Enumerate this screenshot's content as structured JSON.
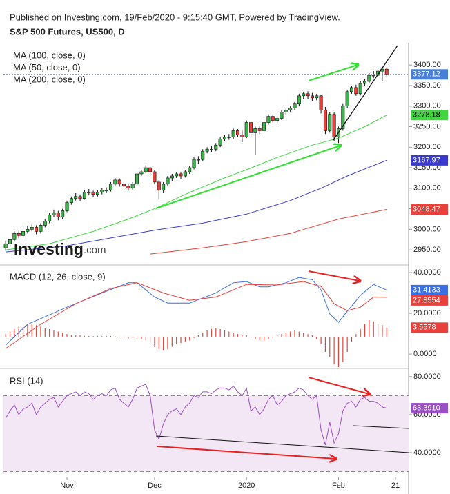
{
  "header": {
    "text": "Published on Investing.com, 19/Feb/2020 - 9:15:40 GMT, Powered by TradingView.",
    "title": "S&P 500 Futures, US500, D"
  },
  "logo": {
    "brand": "Investing",
    "suffix": ".com"
  },
  "chart_data": [
    {
      "type": "candlestick",
      "up_color": "#3cb44b",
      "down_color": "#e8413b",
      "wick_color": "#111111",
      "last_color": "#4a7fd8",
      "xlim": [
        -0.5,
        92
      ],
      "ylim": [
        2915,
        3454
      ],
      "yticks": [
        {
          "value": 3400,
          "label": "3400.00"
        },
        {
          "value": 3350,
          "label": "3350.00"
        },
        {
          "value": 3300,
          "label": "3300.00"
        },
        {
          "value": 3250,
          "label": "3250.00"
        },
        {
          "value": 3200,
          "label": "3200.00"
        },
        {
          "value": 3150,
          "label": "3150.00"
        },
        {
          "value": 3100,
          "label": "3100.00"
        },
        {
          "value": 3050,
          "label": "3050.00"
        },
        {
          "value": 3000,
          "label": "3000.00"
        },
        {
          "value": 2950,
          "label": "2950.00"
        }
      ],
      "candles": [
        [
          2955,
          2972,
          2948,
          2965
        ],
        [
          2965,
          2980,
          2960,
          2975
        ],
        [
          2975,
          2995,
          2970,
          2990
        ],
        [
          2990,
          2995,
          2978,
          2985
        ],
        [
          2985,
          3000,
          2980,
          2995
        ],
        [
          2995,
          3008,
          2990,
          3000
        ],
        [
          3000,
          3012,
          2995,
          3005
        ],
        [
          3005,
          3010,
          2988,
          2995
        ],
        [
          2995,
          3015,
          2990,
          3010
        ],
        [
          3010,
          3025,
          3005,
          3020
        ],
        [
          3020,
          3040,
          3015,
          3035
        ],
        [
          3035,
          3048,
          3030,
          3040
        ],
        [
          3040,
          3045,
          3022,
          3030
        ],
        [
          3030,
          3050,
          3025,
          3045
        ],
        [
          3045,
          3070,
          3042,
          3065
        ],
        [
          3065,
          3080,
          3060,
          3075
        ],
        [
          3075,
          3088,
          3070,
          3080
        ],
        [
          3080,
          3085,
          3068,
          3075
        ],
        [
          3075,
          3095,
          3072,
          3090
        ],
        [
          3090,
          3098,
          3083,
          3090
        ],
        [
          3090,
          3094,
          3078,
          3085
        ],
        [
          3085,
          3096,
          3080,
          3090
        ],
        [
          3090,
          3100,
          3085,
          3095
        ],
        [
          3095,
          3102,
          3088,
          3095
        ],
        [
          3095,
          3115,
          3092,
          3110
        ],
        [
          3110,
          3125,
          3105,
          3120
        ],
        [
          3120,
          3124,
          3104,
          3110
        ],
        [
          3110,
          3115,
          3098,
          3105
        ],
        [
          3105,
          3110,
          3094,
          3100
        ],
        [
          3100,
          3115,
          3096,
          3110
        ],
        [
          3110,
          3140,
          3108,
          3135
        ],
        [
          3135,
          3145,
          3130,
          3140
        ],
        [
          3140,
          3156,
          3136,
          3150
        ],
        [
          3150,
          3155,
          3135,
          3140
        ],
        [
          3140,
          3145,
          3110,
          3115
        ],
        [
          3115,
          3120,
          3072,
          3095
        ],
        [
          3095,
          3115,
          3088,
          3110
        ],
        [
          3110,
          3130,
          3105,
          3125
        ],
        [
          3125,
          3135,
          3118,
          3130
        ],
        [
          3130,
          3140,
          3125,
          3135
        ],
        [
          3135,
          3138,
          3122,
          3130
        ],
        [
          3130,
          3145,
          3126,
          3140
        ],
        [
          3140,
          3155,
          3135,
          3150
        ],
        [
          3150,
          3175,
          3146,
          3170
        ],
        [
          3170,
          3178,
          3160,
          3170
        ],
        [
          3170,
          3195,
          3166,
          3190
        ],
        [
          3190,
          3200,
          3185,
          3195
        ],
        [
          3195,
          3202,
          3188,
          3195
        ],
        [
          3195,
          3210,
          3190,
          3205
        ],
        [
          3205,
          3225,
          3200,
          3220
        ],
        [
          3220,
          3230,
          3215,
          3225
        ],
        [
          3225,
          3232,
          3218,
          3225
        ],
        [
          3225,
          3245,
          3220,
          3240
        ],
        [
          3240,
          3244,
          3225,
          3230
        ],
        [
          3230,
          3240,
          3212,
          3225
        ],
        [
          3225,
          3265,
          3222,
          3260
        ],
        [
          3260,
          3262,
          3225,
          3235
        ],
        [
          3235,
          3250,
          3182,
          3245
        ],
        [
          3245,
          3252,
          3232,
          3240
        ],
        [
          3240,
          3265,
          3236,
          3260
        ],
        [
          3260,
          3280,
          3255,
          3275
        ],
        [
          3275,
          3280,
          3260,
          3265
        ],
        [
          3265,
          3275,
          3258,
          3270
        ],
        [
          3270,
          3290,
          3266,
          3285
        ],
        [
          3285,
          3296,
          3280,
          3290
        ],
        [
          3290,
          3300,
          3284,
          3295
        ],
        [
          3295,
          3310,
          3290,
          3305
        ],
        [
          3305,
          3330,
          3300,
          3325
        ],
        [
          3325,
          3335,
          3318,
          3330
        ],
        [
          3330,
          3336,
          3318,
          3325
        ],
        [
          3325,
          3332,
          3312,
          3320
        ],
        [
          3320,
          3330,
          3314,
          3325
        ],
        [
          3325,
          3328,
          3282,
          3290
        ],
        [
          3290,
          3298,
          3232,
          3240
        ],
        [
          3240,
          3285,
          3235,
          3280
        ],
        [
          3280,
          3286,
          3215,
          3225
        ],
        [
          3225,
          3250,
          3210,
          3245
        ],
        [
          3245,
          3305,
          3240,
          3300
        ],
        [
          3300,
          3340,
          3296,
          3335
        ],
        [
          3335,
          3350,
          3330,
          3345
        ],
        [
          3345,
          3352,
          3325,
          3330
        ],
        [
          3330,
          3360,
          3326,
          3355
        ],
        [
          3355,
          3365,
          3348,
          3360
        ],
        [
          3360,
          3380,
          3355,
          3375
        ],
        [
          3375,
          3385,
          3368,
          3375
        ],
        [
          3375,
          3390,
          3370,
          3385
        ],
        [
          3385,
          3395,
          3360,
          3390
        ],
        [
          3390,
          3392,
          3372,
          3377.12
        ]
      ],
      "series": [
        {
          "name": "MA (100, close, 0)",
          "color": "#3a3ad0",
          "x": [
            0,
            14,
            34,
            45,
            55,
            65,
            72,
            78,
            87
          ],
          "values": [
            2945,
            2960,
            2998,
            3015,
            3037,
            3070,
            3100,
            3130,
            3167.97
          ]
        },
        {
          "name": "MA (50, close, 0)",
          "color": "#3fd63f",
          "x": [
            0,
            10,
            20,
            28,
            34,
            42,
            50,
            55,
            62,
            70,
            76,
            82,
            87
          ],
          "values": [
            2950,
            2965,
            2995,
            3025,
            3050,
            3090,
            3125,
            3145,
            3175,
            3205,
            3222,
            3250,
            3278.18
          ]
        },
        {
          "name": "MA (200, close, 0)",
          "color": "#e8413b",
          "x": [
            33,
            45,
            55,
            65,
            76,
            87
          ],
          "values": [
            2940,
            2955,
            2970,
            2990,
            3025,
            3048.47
          ]
        }
      ]
    },
    {
      "type": "macd",
      "title": "MACD (12, 26, close, 9)",
      "xlim": [
        -0.5,
        92
      ],
      "ylim": [
        -6.4,
        43.4
      ],
      "y2lim": [
        -12,
        28
      ],
      "yticks": [
        {
          "value": 40,
          "label": "40.0000"
        },
        {
          "value": 20,
          "label": "20.0000"
        },
        {
          "value": 0,
          "label": "0.0000"
        }
      ],
      "series": [
        {
          "color": "#3b6fe0",
          "x": [
            0,
            5,
            14,
            22,
            28,
            30,
            34,
            37,
            42,
            48,
            52,
            55,
            58,
            60,
            64,
            67,
            70,
            72,
            74,
            76,
            78,
            81,
            84,
            87
          ],
          "values": [
            4.4,
            14.6,
            23,
            30,
            35,
            35,
            28,
            25,
            25,
            30,
            35,
            35.6,
            33,
            33,
            35,
            37.6,
            36.5,
            31.5,
            19.7,
            15.6,
            21,
            28.8,
            34.2,
            31.4133
          ]
        },
        {
          "color": "#e8413b",
          "x": [
            0,
            8,
            16,
            24,
            30,
            36,
            42,
            48,
            55,
            62,
            68,
            72,
            75,
            78,
            81,
            84,
            87
          ],
          "values": [
            2.7,
            14.6,
            24.7,
            32.2,
            35,
            30,
            26.4,
            28,
            34.2,
            33.9,
            35.6,
            33.2,
            24.7,
            21.3,
            23,
            28,
            27.8554
          ]
        },
        {
          "color": "#e8413b",
          "axis": "y2",
          "values": [
            1,
            2,
            3,
            4,
            4.5,
            5,
            5,
            4.5,
            4,
            3.5,
            3,
            2.5,
            2,
            1.5,
            1,
            0.8,
            0.5,
            0.5,
            0.3,
            0.3,
            0.2,
            0.2,
            0.2,
            0.3,
            0.3,
            0.2,
            -0.3,
            -0.5,
            -0.8,
            -0.5,
            -0.3,
            -1,
            -1.5,
            -2.5,
            -4,
            -5,
            -5.5,
            -5,
            -4,
            -3,
            -2.5,
            -2,
            -1.5,
            -0.5,
            0.5,
            1.5,
            2.5,
            3,
            3.5,
            3,
            2.5,
            2,
            1.5,
            1,
            0.5,
            0.5,
            -0.5,
            -1,
            -1.5,
            -1.5,
            -1,
            -0.5,
            0.5,
            1,
            1.5,
            2,
            2.5,
            2,
            1.5,
            1,
            0.5,
            -1,
            -3,
            -6,
            -8,
            -11,
            -12,
            -10,
            -6,
            -2,
            1,
            3,
            5,
            6.5,
            6,
            5,
            4.5,
            3.5578
          ]
        }
      ]
    },
    {
      "type": "rsi",
      "title": "RSI (14)",
      "xlim": [
        -0.5,
        92
      ],
      "ylim": [
        27.6,
        83.6
      ],
      "yticks": [
        {
          "value": 80,
          "label": "80.0000"
        },
        {
          "value": 60,
          "label": "60.0000"
        },
        {
          "value": 40,
          "label": "40.0000"
        }
      ],
      "band": [
        30,
        70
      ],
      "band_color": "#f3e6f5",
      "xticks": [
        {
          "value": 14,
          "label": "Nov"
        },
        {
          "value": 34,
          "label": "Dec"
        },
        {
          "value": 55,
          "label": "2020"
        },
        {
          "value": 76,
          "label": "Feb"
        },
        {
          "value": 89,
          "label": "21"
        }
      ],
      "series": [
        {
          "color": "#9a4fc4",
          "last_label": "63.3910",
          "values": [
            58,
            62,
            65,
            60,
            63,
            64,
            66,
            60,
            64,
            66,
            68,
            69,
            64,
            67,
            70,
            71,
            72,
            70,
            72,
            71,
            68,
            70,
            71,
            70,
            73,
            74,
            68,
            66,
            64,
            68,
            74,
            75,
            76,
            70,
            52,
            47,
            55,
            60,
            62,
            63,
            60,
            64,
            66,
            70,
            69,
            72,
            72,
            71,
            73,
            74,
            74,
            73,
            75,
            72,
            70,
            74,
            62,
            64,
            60,
            63,
            68,
            70,
            65,
            67,
            70,
            71,
            72,
            74,
            73,
            70,
            68,
            70,
            52,
            44,
            56,
            45,
            50,
            62,
            66,
            67,
            64,
            68,
            69,
            67,
            67,
            66,
            64,
            63.391
          ]
        }
      ]
    }
  ]
}
